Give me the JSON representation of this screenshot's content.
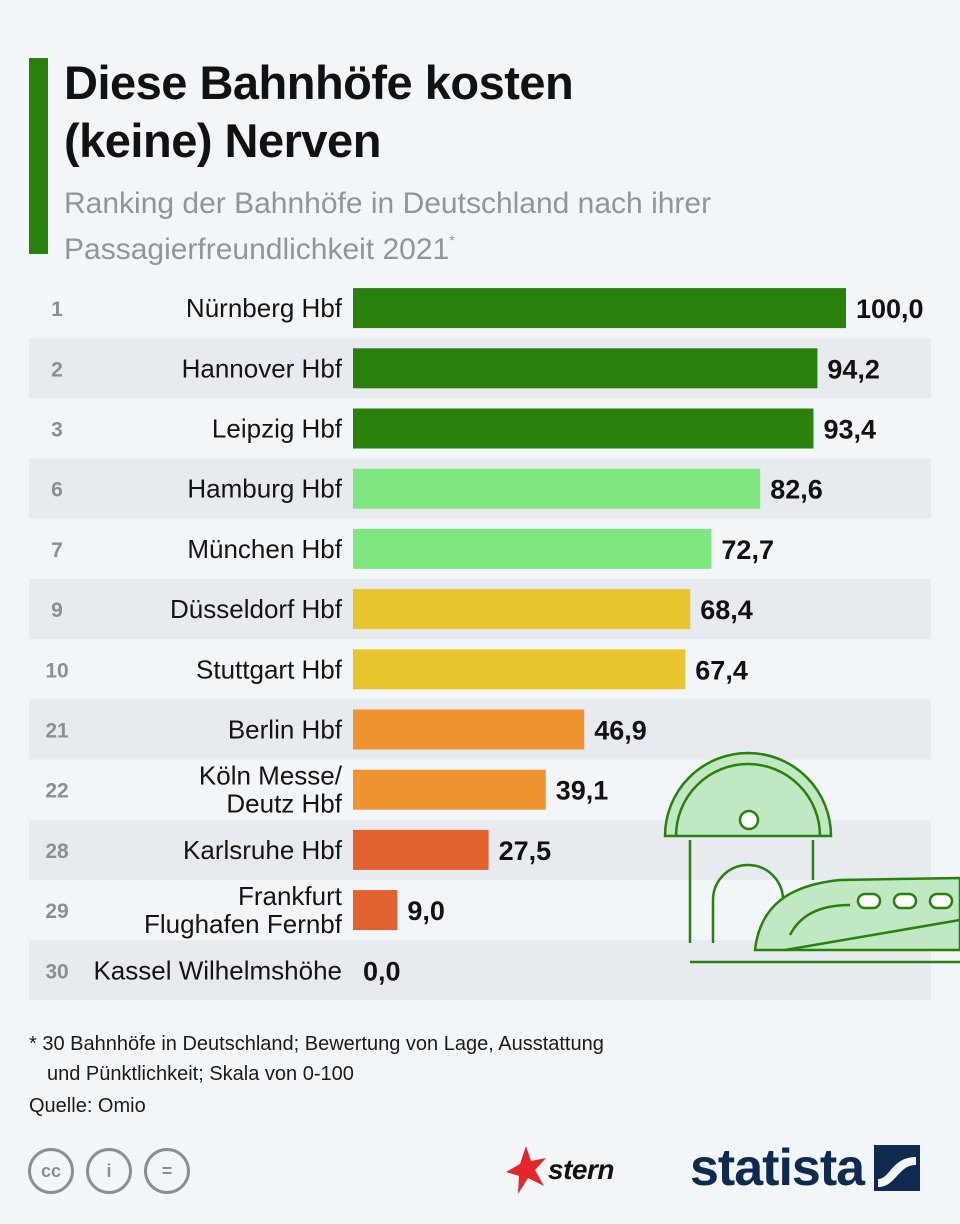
{
  "header": {
    "title_line1": "Diese Bahnhöfe kosten",
    "title_line2": "(keine) Nerven",
    "subtitle_line1": "Ranking der Bahnhöfe in Deutschland nach ihrer",
    "subtitle_line2": "Passagierfreundlichkeit 2021",
    "subtitle_mark": "*"
  },
  "colors": {
    "dark_green": "#2a800c",
    "light_green": "#7fe57f",
    "yellow": "#e8c42f",
    "orange": "#ef9230",
    "red_orange": "#e2622f",
    "stripe": "#e7ebef"
  },
  "chart_data": {
    "type": "bar",
    "orientation": "horizontal",
    "title": "Diese Bahnhöfe kosten (keine) Nerven",
    "subtitle": "Ranking der Bahnhöfe in Deutschland nach ihrer Passagierfreundlichkeit 2021*",
    "xlim": [
      0,
      100
    ],
    "rows": [
      {
        "rank": "1",
        "label": [
          "Nürnberg Hbf"
        ],
        "value": 100.0,
        "value_label": "100,0",
        "color": "#2a800c"
      },
      {
        "rank": "2",
        "label": [
          "Hannover Hbf"
        ],
        "value": 94.2,
        "value_label": "94,2",
        "color": "#2a800c"
      },
      {
        "rank": "3",
        "label": [
          "Leipzig Hbf"
        ],
        "value": 93.4,
        "value_label": "93,4",
        "color": "#2a800c"
      },
      {
        "rank": "6",
        "label": [
          "Hamburg Hbf"
        ],
        "value": 82.6,
        "value_label": "82,6",
        "color": "#7fe57f"
      },
      {
        "rank": "7",
        "label": [
          "München Hbf"
        ],
        "value": 72.7,
        "value_label": "72,7",
        "color": "#7fe57f"
      },
      {
        "rank": "9",
        "label": [
          "Düsseldorf Hbf"
        ],
        "value": 68.4,
        "value_label": "68,4",
        "color": "#e8c42f"
      },
      {
        "rank": "10",
        "label": [
          "Stuttgart Hbf"
        ],
        "value": 67.4,
        "value_label": "67,4",
        "color": "#e8c42f"
      },
      {
        "rank": "21",
        "label": [
          "Berlin Hbf"
        ],
        "value": 46.9,
        "value_label": "46,9",
        "color": "#ef9230"
      },
      {
        "rank": "22",
        "label": [
          "Köln Messe/",
          "Deutz Hbf"
        ],
        "value": 39.1,
        "value_label": "39,1",
        "color": "#ef9230"
      },
      {
        "rank": "28",
        "label": [
          "Karlsruhe Hbf"
        ],
        "value": 27.5,
        "value_label": "27,5",
        "color": "#e2622f"
      },
      {
        "rank": "29",
        "label": [
          "Frankfurt",
          "Flughafen Fernbf"
        ],
        "value": 9.0,
        "value_label": "9,0",
        "color": "#e2622f"
      },
      {
        "rank": "30",
        "label": [
          "Kassel Wilhelmshöhe"
        ],
        "value": 0.0,
        "value_label": "0,0",
        "color": "#e2622f"
      }
    ]
  },
  "footer": {
    "note_line1": "* 30 Bahnhöfe in Deutschland; Bewertung von Lage, Ausstattung",
    "note_line2": "und Pünktlichkeit; Skala von 0-100",
    "source": "Quelle: Omio",
    "cc_labels": [
      "cc",
      "i",
      "="
    ],
    "stern_label": "stern",
    "statista_label": "statista"
  }
}
